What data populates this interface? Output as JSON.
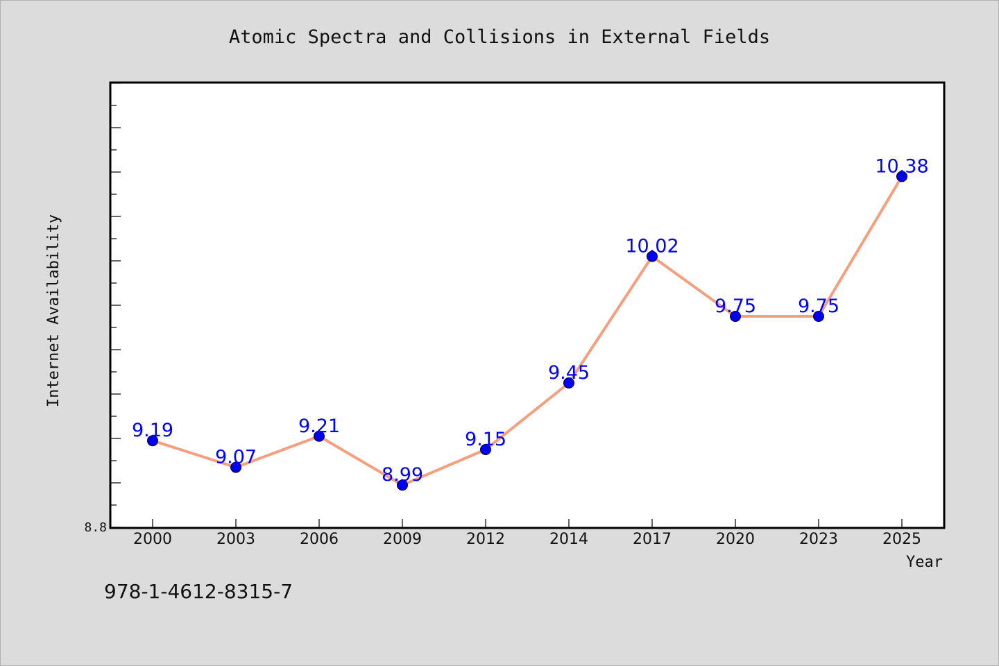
{
  "chart_data": {
    "type": "line",
    "title": "Atomic Spectra and Collisions in External Fields",
    "xlabel": "Year",
    "ylabel": "Internet Availability",
    "categories": [
      "2000",
      "2003",
      "2006",
      "2009",
      "2012",
      "2014",
      "2017",
      "2020",
      "2023",
      "2025"
    ],
    "series": [
      {
        "values": [
          9.19,
          9.07,
          9.21,
          8.99,
          9.15,
          9.45,
          10.02,
          9.75,
          9.75,
          10.38
        ],
        "labels": [
          "9.19",
          "9.07",
          "9.21",
          "8.99",
          "9.15",
          "9.45",
          "10.02",
          "9.75",
          "9.75",
          "10.38"
        ],
        "line_color": "#f4a07e",
        "marker_color": "#0000ee",
        "label_color": "#0000ff"
      }
    ],
    "ylim": [
      8.8,
      10.8
    ],
    "y_tick_labels": [
      "8.8"
    ],
    "grid": false,
    "legend": "none"
  },
  "footer": {
    "isbn": "978-1-4612-8315-7"
  }
}
